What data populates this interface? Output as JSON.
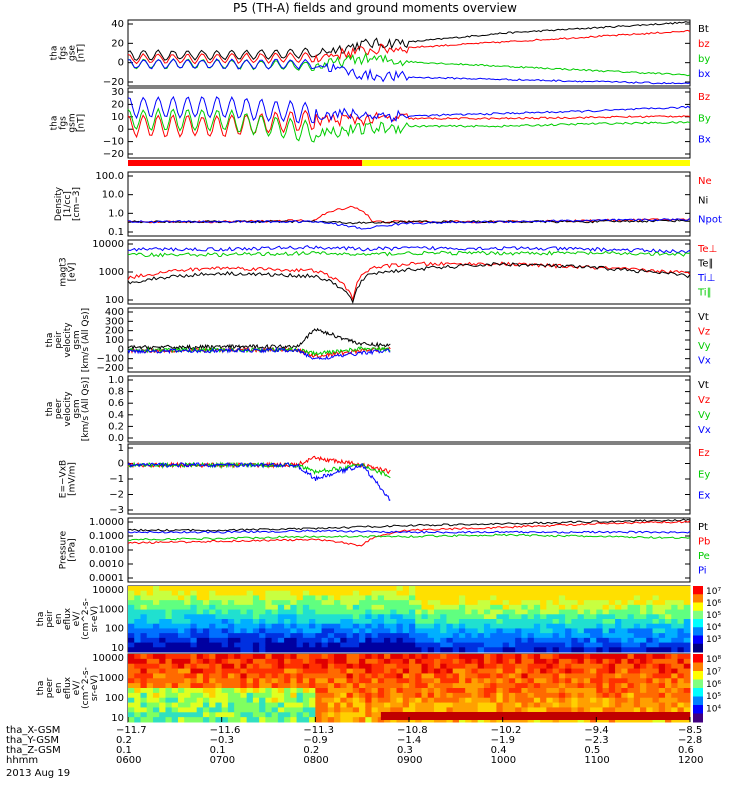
{
  "title": "P5 (TH-A) fields and ground moments overview",
  "date": "2013 Aug 19",
  "colors": {
    "black": "#000000",
    "red": "#ff0000",
    "green": "#00cc00",
    "blue": "#0000ff",
    "yellow": "#ffff00"
  },
  "chart_data": [
    {
      "id": "fgs-gse",
      "type": "line",
      "ylabel": [
        "tha",
        "fgs",
        "gse",
        "[nT]"
      ],
      "yticks": [
        "40",
        "20",
        "0",
        "−20"
      ],
      "legend": [
        {
          "name": "Bt",
          "color": "#000000"
        },
        {
          "name": "bz",
          "color": "#ff0000"
        },
        {
          "name": "by",
          "color": "#00cc00"
        },
        {
          "name": "bx",
          "color": "#0000ff"
        }
      ],
      "ylim": [
        -20,
        40
      ],
      "series": [
        {
          "name": "Bt",
          "x": [
            6.0,
            7.0,
            8.0,
            8.5,
            9.0,
            10.0,
            11.0,
            12.0
          ],
          "y": [
            8,
            8,
            10,
            18,
            20,
            28,
            33,
            38
          ]
        },
        {
          "name": "bz",
          "x": [
            6.0,
            7.0,
            8.0,
            8.5,
            9.0,
            10.0,
            11.0,
            12.0
          ],
          "y": [
            5,
            5,
            6,
            12,
            15,
            20,
            25,
            30
          ]
        },
        {
          "name": "by",
          "x": [
            6.0,
            7.0,
            8.0,
            8.5,
            9.0,
            10.0,
            11.0,
            12.0
          ],
          "y": [
            0,
            0,
            -2,
            5,
            2,
            -2,
            -6,
            -10
          ]
        },
        {
          "name": "bx",
          "x": [
            6.0,
            7.0,
            8.0,
            8.5,
            9.0,
            10.0,
            11.0,
            12.0
          ],
          "y": [
            0,
            0,
            0,
            -10,
            -12,
            -14,
            -16,
            -18
          ]
        }
      ]
    },
    {
      "id": "fgs-gsm",
      "type": "line",
      "ylabel": [
        "tha",
        "fgs",
        "gsm",
        "[nT]"
      ],
      "yticks": [
        "30",
        "20",
        "10",
        "0",
        "−10",
        "−20"
      ],
      "legend": [
        {
          "name": "Bz",
          "color": "#ff0000"
        },
        {
          "name": "By",
          "color": "#00cc00"
        },
        {
          "name": "Bx",
          "color": "#0000ff"
        }
      ],
      "ylim": [
        -25,
        30
      ],
      "series": [
        {
          "name": "Bz",
          "x": [
            6.0,
            7.0,
            8.0,
            9.0,
            10.0,
            11.0,
            12.0
          ],
          "y": [
            0,
            0,
            5,
            6,
            6,
            7,
            8
          ]
        },
        {
          "name": "By",
          "x": [
            6.0,
            7.0,
            8.0,
            9.0,
            10.0,
            11.0,
            12.0
          ],
          "y": [
            5,
            5,
            -5,
            0,
            0,
            2,
            3
          ]
        },
        {
          "name": "Bx",
          "x": [
            6.0,
            7.0,
            8.0,
            9.0,
            10.0,
            11.0,
            12.0
          ],
          "y": [
            15,
            15,
            10,
            8,
            10,
            12,
            15
          ]
        }
      ]
    },
    {
      "id": "density",
      "type": "line",
      "log": true,
      "ylabel": [
        "Density",
        "[1/cc]",
        "[cm−3]"
      ],
      "yticks": [
        "100.0",
        "10.0",
        "1.0",
        "0.1"
      ],
      "legend": [
        {
          "name": "Ne",
          "color": "#ff0000"
        },
        {
          "name": "Ni",
          "color": "#000000"
        },
        {
          "name": "Npot",
          "color": "#0000ff"
        }
      ],
      "ylim": [
        0.05,
        150
      ],
      "series": [
        {
          "name": "Ne",
          "x": [
            6.0,
            7.0,
            8.0,
            8.4,
            8.6,
            9.0,
            10.0,
            11.0,
            12.0
          ],
          "y": [
            0.3,
            0.3,
            0.35,
            2.0,
            0.3,
            0.3,
            0.3,
            0.35,
            0.4
          ]
        },
        {
          "name": "Ni",
          "x": [
            6.0,
            7.0,
            8.0,
            8.5,
            9.0,
            10.0,
            11.0,
            12.0
          ],
          "y": [
            0.3,
            0.3,
            0.3,
            0.25,
            0.3,
            0.3,
            0.3,
            0.35
          ]
        },
        {
          "name": "Npot",
          "x": [
            6.0,
            7.0,
            8.0,
            8.5,
            9.0,
            10.0,
            11.0,
            12.0
          ],
          "y": [
            0.3,
            0.3,
            0.3,
            0.12,
            0.25,
            0.3,
            0.35,
            0.4
          ]
        }
      ]
    },
    {
      "id": "temperature",
      "type": "line",
      "log": true,
      "ylabel": [
        "magt3",
        "[eV]"
      ],
      "yticks": [
        "10000",
        "1000",
        "100"
      ],
      "legend": [
        {
          "name": "Te⊥",
          "color": "#ff0000"
        },
        {
          "name": "Te∥",
          "color": "#000000"
        },
        {
          "name": "Ti⊥",
          "color": "#0000ff"
        },
        {
          "name": "Ti∥",
          "color": "#00cc00"
        }
      ],
      "ylim": [
        100,
        12000
      ],
      "series": [
        {
          "name": "Te⊥",
          "x": [
            6.0,
            6.5,
            7.0,
            8.0,
            8.4,
            8.6,
            9.0,
            10.0,
            11.0,
            12.0
          ],
          "y": [
            700,
            1200,
            1500,
            1200,
            150,
            1500,
            2000,
            2000,
            1500,
            1000
          ]
        },
        {
          "name": "Te∥",
          "x": [
            6.0,
            6.5,
            7.0,
            8.0,
            8.4,
            8.6,
            9.0,
            10.0,
            11.0,
            12.0
          ],
          "y": [
            500,
            800,
            1000,
            800,
            110,
            1000,
            1300,
            2000,
            1500,
            800
          ]
        },
        {
          "name": "Ti⊥",
          "x": [
            6.0,
            7.0,
            8.0,
            8.5,
            9.0,
            10.0,
            11.0,
            12.0
          ],
          "y": [
            6000,
            6000,
            7000,
            6000,
            6500,
            6500,
            6000,
            5000
          ]
        },
        {
          "name": "Ti∥",
          "x": [
            6.0,
            7.0,
            8.0,
            8.5,
            9.0,
            10.0,
            11.0,
            12.0
          ],
          "y": [
            4000,
            4000,
            4500,
            4000,
            4500,
            4500,
            4500,
            4000
          ]
        }
      ]
    },
    {
      "id": "peir-velocity",
      "type": "line",
      "ylabel": [
        "tha",
        "peir",
        "velocity",
        "gsm",
        "[km/s (All Qs)]"
      ],
      "yticks": [
        "400",
        "300",
        "200",
        "100",
        "0",
        "−100",
        "−200"
      ],
      "legend": [
        {
          "name": "Vt",
          "color": "#000000"
        },
        {
          "name": "Vz",
          "color": "#ff0000"
        },
        {
          "name": "Vy",
          "color": "#00cc00"
        },
        {
          "name": "Vx",
          "color": "#0000ff"
        }
      ],
      "ylim": [
        -200,
        400
      ],
      "series": [
        {
          "name": "Vt",
          "x": [
            6.0,
            7.0,
            7.8,
            8.0,
            8.5,
            8.8
          ],
          "y": [
            30,
            35,
            40,
            200,
            60,
            50
          ]
        },
        {
          "name": "Vz",
          "x": [
            6.0,
            7.0,
            7.8,
            8.0,
            8.5,
            8.8
          ],
          "y": [
            0,
            5,
            10,
            -50,
            0,
            20
          ]
        },
        {
          "name": "Vy",
          "x": [
            6.0,
            7.0,
            7.8,
            8.0,
            8.5,
            8.8
          ],
          "y": [
            5,
            5,
            10,
            -30,
            20,
            10
          ]
        },
        {
          "name": "Vx",
          "x": [
            6.0,
            7.0,
            7.8,
            8.0,
            8.5,
            8.8
          ],
          "y": [
            -5,
            0,
            5,
            -80,
            -20,
            0
          ]
        }
      ]
    },
    {
      "id": "peer-velocity",
      "type": "line",
      "ylabel": [
        "tha",
        "peer",
        "velocity",
        "gsm",
        "[km/s (All Qs)]"
      ],
      "yticks": [
        "1.0",
        "0.8",
        "0.6",
        "0.4",
        "0.2",
        "0.0"
      ],
      "legend": [
        {
          "name": "Vt",
          "color": "#000000"
        },
        {
          "name": "Vz",
          "color": "#ff0000"
        },
        {
          "name": "Vy",
          "color": "#00cc00"
        },
        {
          "name": "Vx",
          "color": "#0000ff"
        }
      ],
      "ylim": [
        0,
        1
      ],
      "series": []
    },
    {
      "id": "efield",
      "type": "line",
      "ylabel": [
        "E=−VxB",
        "[mV/m]"
      ],
      "yticks": [
        "1",
        "0",
        "−1",
        "−2",
        "−3"
      ],
      "legend": [
        {
          "name": "Ez",
          "color": "#ff0000"
        },
        {
          "name": "Ey",
          "color": "#00cc00"
        },
        {
          "name": "Ex",
          "color": "#0000ff"
        }
      ],
      "ylim": [
        -3.5,
        1.5
      ],
      "series": [
        {
          "name": "Ez",
          "x": [
            6.0,
            7.0,
            7.8,
            8.0,
            8.5,
            8.8
          ],
          "y": [
            0,
            0,
            0,
            0.5,
            0,
            -0.5
          ]
        },
        {
          "name": "Ey",
          "x": [
            6.0,
            7.0,
            7.8,
            8.0,
            8.5,
            8.8
          ],
          "y": [
            0,
            0,
            0,
            -0.5,
            0,
            -0.8
          ]
        },
        {
          "name": "Ex",
          "x": [
            6.0,
            7.0,
            7.8,
            8.0,
            8.5,
            8.8
          ],
          "y": [
            0,
            0,
            0,
            -1,
            0,
            -2.5
          ]
        }
      ]
    },
    {
      "id": "pressure",
      "type": "line",
      "log": true,
      "ylabel": [
        "Pressure",
        "[nPa]"
      ],
      "yticks": [
        "1.0000",
        "0.1000",
        "0.0100",
        "0.0010",
        "0.0001"
      ],
      "legend": [
        {
          "name": "Pt",
          "color": "#000000"
        },
        {
          "name": "Pb",
          "color": "#ff0000"
        },
        {
          "name": "Pe",
          "color": "#00cc00"
        },
        {
          "name": "Pi",
          "color": "#0000ff"
        }
      ],
      "ylim": [
        0.0001,
        1.2
      ],
      "series": [
        {
          "name": "Pt",
          "x": [
            6.0,
            7.0,
            8.0,
            9.0,
            10.0,
            11.0,
            12.0
          ],
          "y": [
            0.2,
            0.2,
            0.25,
            0.4,
            0.5,
            0.7,
            0.9
          ]
        },
        {
          "name": "Pb",
          "x": [
            6.0,
            7.0,
            8.0,
            8.5,
            9.0,
            10.0,
            11.0,
            12.0
          ],
          "y": [
            0.03,
            0.04,
            0.05,
            0.02,
            0.2,
            0.3,
            0.5,
            0.7
          ]
        },
        {
          "name": "Pe",
          "x": [
            6.0,
            7.0,
            8.0,
            9.0,
            10.0,
            11.0,
            12.0
          ],
          "y": [
            0.05,
            0.06,
            0.08,
            0.08,
            0.1,
            0.08,
            0.06
          ]
        },
        {
          "name": "Pi",
          "x": [
            6.0,
            7.0,
            8.0,
            9.0,
            10.0,
            11.0,
            12.0
          ],
          "y": [
            0.15,
            0.15,
            0.18,
            0.15,
            0.15,
            0.15,
            0.15
          ]
        }
      ]
    },
    {
      "id": "peir-spectrogram",
      "type": "heatmap",
      "ylabel": [
        "tha",
        "peir",
        "en",
        "eflux",
        "eV/",
        "(cm^2-s-",
        "sr-eV)"
      ],
      "yticks": [
        "10000",
        "1000",
        "100",
        "10"
      ],
      "colorbar": [
        "10⁷",
        "10⁶",
        "10⁵",
        "10⁴",
        "10³"
      ]
    },
    {
      "id": "peer-spectrogram",
      "type": "heatmap",
      "ylabel": [
        "tha",
        "peer",
        "en",
        "eflux",
        "eV/",
        "(cm^2-s-",
        "sr-eV)"
      ],
      "yticks": [
        "10000",
        "1000",
        "100",
        "10"
      ],
      "colorbar": [
        "10⁸",
        "10⁷",
        "10⁶",
        "10⁵",
        "10⁴"
      ]
    }
  ],
  "xaxis": {
    "rows": [
      {
        "label": "tha_X-GSM",
        "values": [
          "−11.7",
          "−11.6",
          "−11.3",
          "−10.8",
          "−10.2",
          "−9.4",
          "−8.5"
        ]
      },
      {
        "label": "tha_Y-GSM",
        "values": [
          "0.2",
          "−0.3",
          "−0.9",
          "−1.4",
          "−1.9",
          "−2.3",
          "−2.8"
        ]
      },
      {
        "label": "tha_Z-GSM",
        "values": [
          "0.1",
          "0.1",
          "0.2",
          "0.3",
          "0.4",
          "0.5",
          "0.6"
        ]
      },
      {
        "label": "hhmm",
        "values": [
          "0600",
          "0700",
          "0800",
          "0900",
          "1000",
          "1100",
          "1200"
        ]
      }
    ]
  }
}
